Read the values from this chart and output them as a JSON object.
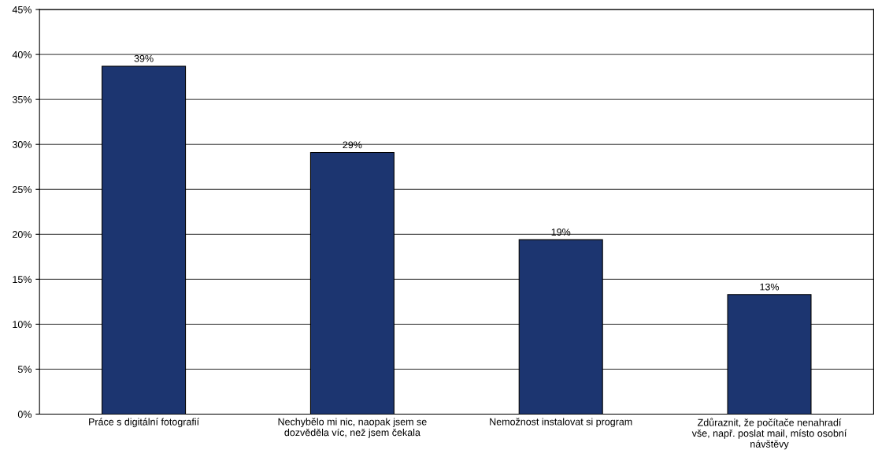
{
  "chart_data": {
    "type": "bar",
    "categories": [
      "Práce s digitální fotografií",
      "Nechybělo mi nic, naopak jsem se\ndozvěděla víc, než jsem čekala",
      "Nemožnost instalovat si program",
      "Zdůraznit, že počítače nenahradí\nvše, např. poslat mail, místo osobní\nnávštěvy"
    ],
    "values": [
      38.7,
      29.1,
      19.4,
      13.3
    ],
    "value_labels": [
      "39%",
      "29%",
      "19%",
      "13%"
    ],
    "color": "#1c3570",
    "ylim": [
      0,
      45
    ],
    "yticks": [
      {
        "value": 0,
        "label": "0%"
      },
      {
        "value": 5,
        "label": "5%"
      },
      {
        "value": 10,
        "label": "10%"
      },
      {
        "value": 15,
        "label": "15%"
      },
      {
        "value": 20,
        "label": "20%"
      },
      {
        "value": 25,
        "label": "25%"
      },
      {
        "value": 30,
        "label": "30%"
      },
      {
        "value": 35,
        "label": "35%"
      },
      {
        "value": 40,
        "label": "40%"
      },
      {
        "value": 45,
        "label": "45%"
      }
    ],
    "grid": "y"
  }
}
